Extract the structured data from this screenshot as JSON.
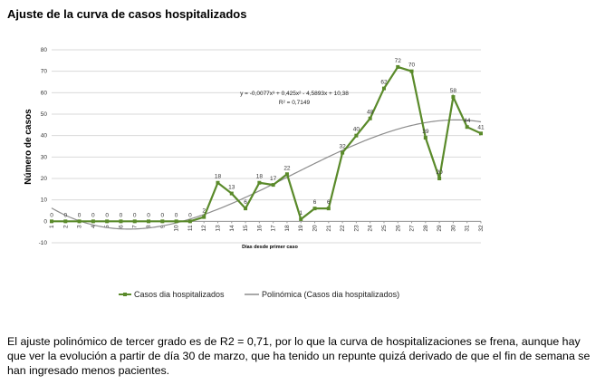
{
  "page": {
    "title": "Ajuste de la curva de casos hospitalizados",
    "description": "El ajuste polinómico de tercer grado es de R2 = 0,71, por lo que la curva de hospitalizaciones se frena, aunque hay que ver la evolución a partir de día 30 de marzo, que ha tenido un repunte quizá derivado de que el fin de semana se han ingresado menos pacientes."
  },
  "chart_data": {
    "type": "line",
    "title": "",
    "xlabel": "Días desde primer caso",
    "ylabel": "Número de casos",
    "x": [
      1,
      2,
      3,
      4,
      5,
      6,
      7,
      8,
      9,
      10,
      11,
      12,
      13,
      14,
      15,
      16,
      17,
      18,
      19,
      20,
      21,
      22,
      23,
      24,
      25,
      26,
      27,
      28,
      29,
      30,
      31,
      32
    ],
    "ylim": [
      -10,
      80
    ],
    "yticks": [
      -10,
      0,
      10,
      20,
      30,
      40,
      50,
      60,
      70,
      80
    ],
    "grid": "horizontal",
    "series": [
      {
        "name": "Casos dia hospitalizados",
        "color": "#5a8a2a",
        "values": [
          0,
          0,
          0,
          0,
          0,
          0,
          0,
          0,
          0,
          0,
          0,
          2,
          18,
          13,
          6,
          18,
          17,
          22,
          1,
          6,
          6,
          32,
          40,
          48,
          62,
          72,
          70,
          39,
          20,
          58,
          44,
          41
        ],
        "labels": [
          "0",
          "0",
          "0",
          "0",
          "0",
          "0",
          "0",
          "0",
          "0",
          "0",
          "0",
          "2",
          "18",
          "13",
          "6",
          "18",
          "17",
          "22",
          "1",
          "6",
          "6",
          "32",
          "40",
          "48",
          "62",
          "72",
          "70",
          "39",
          "20",
          "58",
          "44",
          "41"
        ]
      },
      {
        "name": "Polinómica (Casos dia hospitalizados)",
        "color": "#8c8c8c",
        "trend": {
          "a": -0.0077,
          "b": 0.425,
          "c": -4.5893,
          "d": 10.38
        }
      }
    ],
    "equation": "y = -0,0077x³ + 0,425x² - 4,5893x + 10,38",
    "r2": "R² = 0,7149",
    "legend_position": "bottom"
  }
}
